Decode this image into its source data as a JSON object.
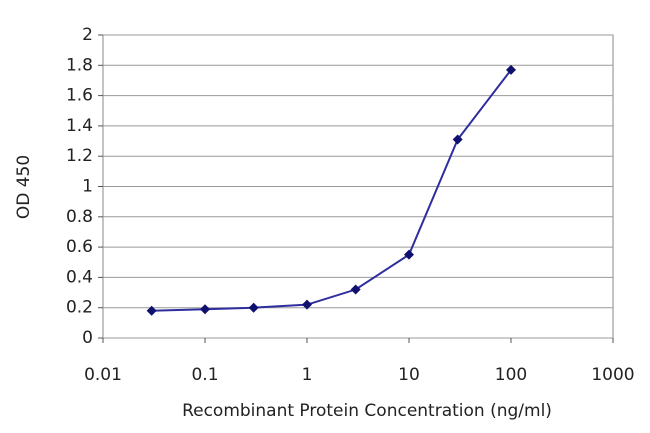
{
  "chart_data": {
    "type": "line",
    "x_label": "Recombinant Protein Concentration (ng/ml)",
    "y_label": "OD 450",
    "x": [
      0.03,
      0.1,
      0.3,
      1,
      3,
      10,
      30,
      100
    ],
    "values": [
      0.18,
      0.19,
      0.2,
      0.22,
      0.32,
      0.55,
      1.31,
      1.77
    ],
    "color": "#2e2e9e",
    "marker_color": "#10106e",
    "xscale": "log",
    "xlim": [
      0.01,
      1000
    ],
    "xticks": [
      0.01,
      0.1,
      1,
      10,
      100,
      1000
    ],
    "ylim": [
      0,
      2
    ],
    "yticks": [
      0,
      0.2,
      0.4,
      0.6,
      0.8,
      1,
      1.2,
      1.4,
      1.6,
      1.8,
      2
    ],
    "grid": true
  }
}
